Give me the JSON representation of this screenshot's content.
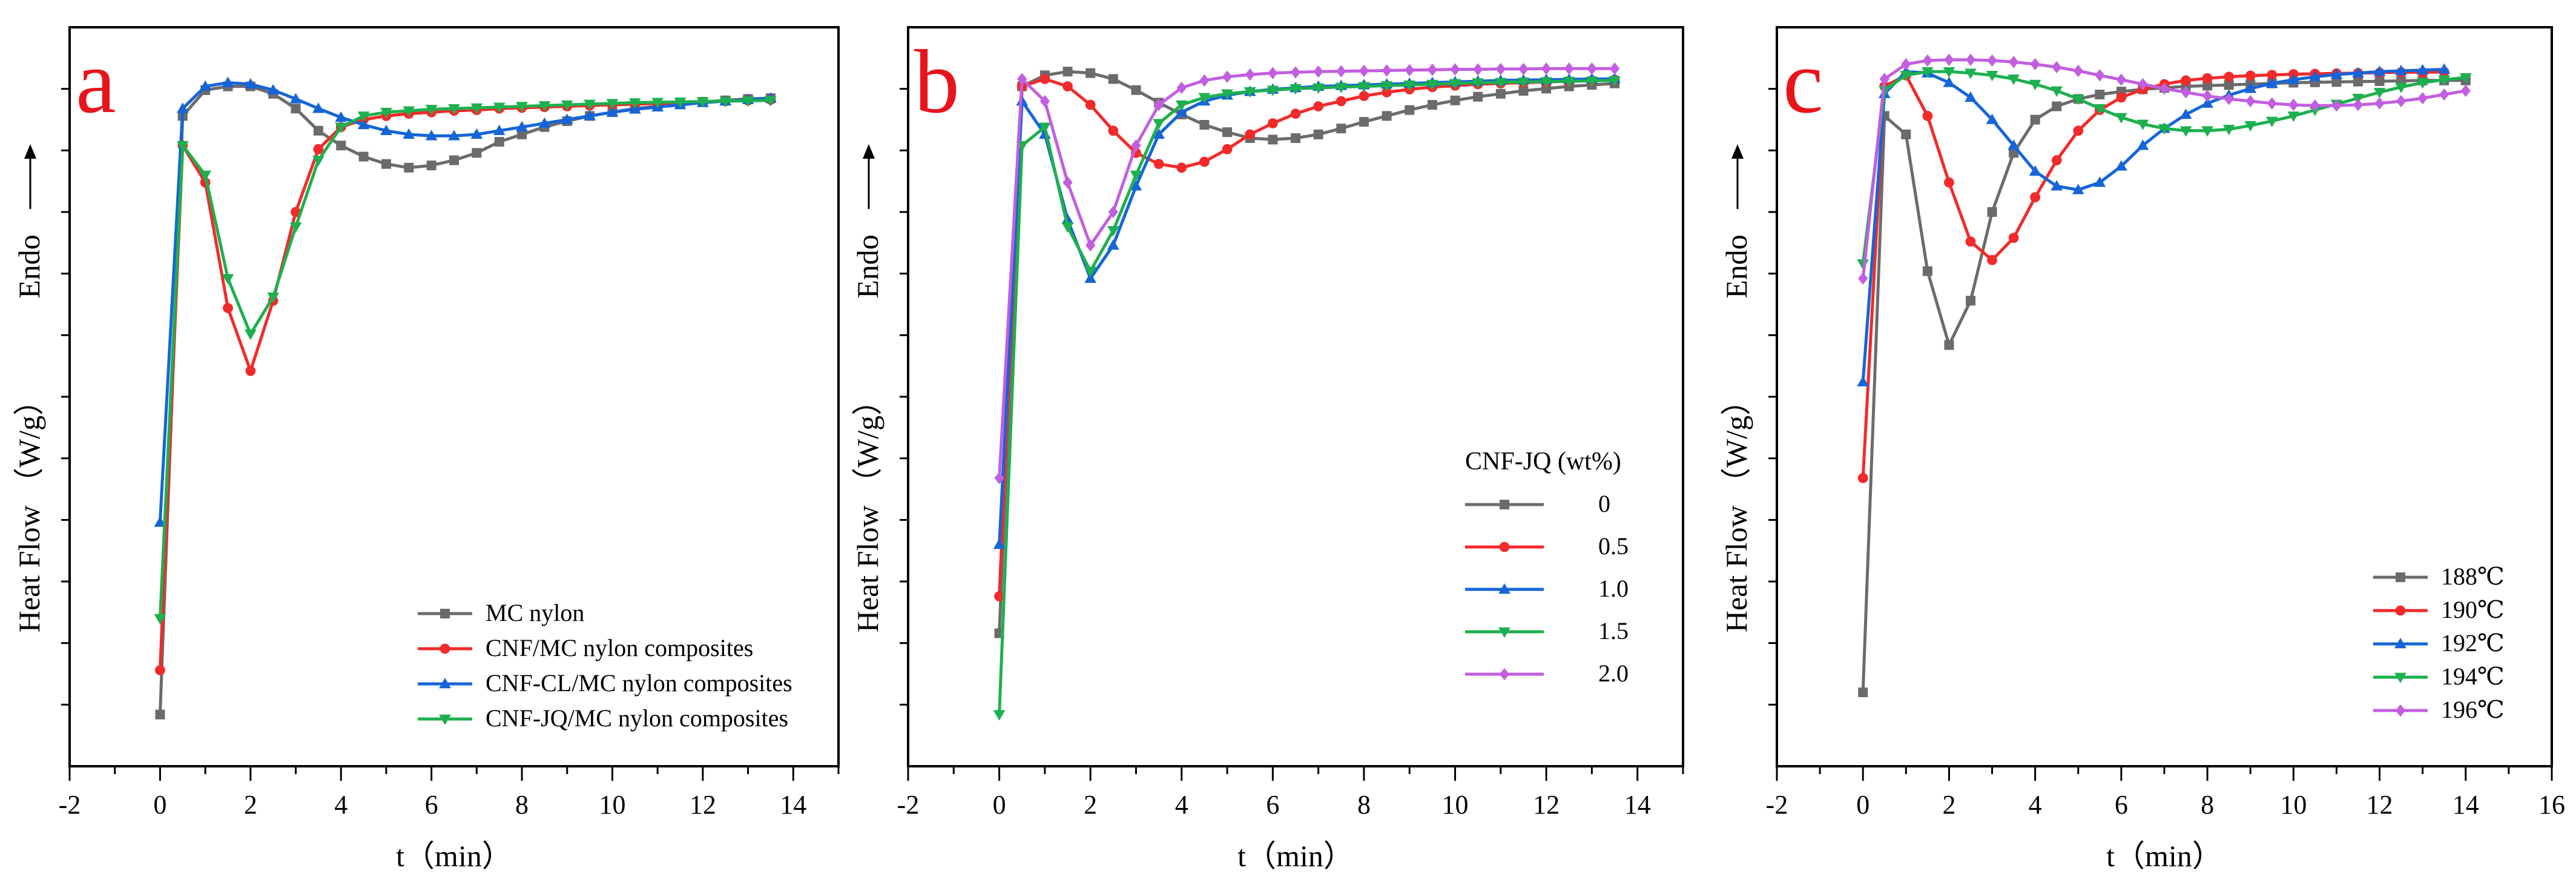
{
  "chart_data": [
    {
      "type": "line",
      "panel_label": "a",
      "xlabel": "t（min）",
      "ylabel": "Heat Flow （W/g）",
      "ylabel_annotation": "Endo",
      "xlim": [
        -2,
        15
      ],
      "ylim": [
        0,
        100
      ],
      "xticks": [
        -2,
        0,
        2,
        4,
        6,
        8,
        10,
        12,
        14
      ],
      "y_tick_labels": false,
      "legend_title": "",
      "legend_position": "bottom-right",
      "series": [
        {
          "name": "MC nylon",
          "color": "#6b6b6b",
          "marker": "square",
          "x": [
            0,
            0.5,
            1,
            1.5,
            2,
            2.5,
            3,
            3.5,
            4,
            4.5,
            5,
            5.5,
            6,
            6.5,
            7,
            7.5,
            8,
            8.5,
            9,
            9.5,
            10,
            10.5,
            11,
            11.5,
            12,
            12.5,
            13,
            13.5
          ],
          "y": [
            7,
            88,
            91.5,
            92,
            92,
            91,
            89,
            86,
            84,
            82.5,
            81.5,
            81,
            81.3,
            82,
            83,
            84.5,
            85.5,
            86.5,
            87.3,
            88,
            88.5,
            89,
            89.3,
            89.6,
            89.9,
            90.1,
            90.3,
            90.4
          ]
        },
        {
          "name": "CNF/MC nylon composites",
          "color": "#f22a2a",
          "marker": "circle",
          "x": [
            0,
            0.5,
            1,
            1.5,
            2,
            2.5,
            3,
            3.5,
            4,
            4.5,
            5,
            5.5,
            6,
            6.5,
            7,
            7.5,
            8,
            8.5,
            9,
            9.5,
            10,
            10.5,
            11,
            11.5,
            12,
            12.5,
            13,
            13.5
          ],
          "y": [
            13,
            84,
            79,
            62,
            53.5,
            63,
            75,
            83.5,
            86.5,
            87.5,
            88,
            88.3,
            88.5,
            88.7,
            88.8,
            89,
            89.1,
            89.2,
            89.3,
            89.4,
            89.5,
            89.6,
            89.7,
            89.8,
            89.9,
            90,
            90.1,
            90.2
          ]
        },
        {
          "name": "CNF-CL/MC nylon composites",
          "color": "#1565d8",
          "marker": "triangle-up",
          "x": [
            0,
            0.5,
            1,
            1.5,
            2,
            2.5,
            3,
            3.5,
            4,
            4.5,
            5,
            5.5,
            6,
            6.5,
            7,
            7.5,
            8,
            8.5,
            9,
            9.5,
            10,
            10.5,
            11,
            11.5,
            12,
            12.5,
            13,
            13.5
          ],
          "y": [
            33,
            89,
            92,
            92.5,
            92.3,
            91.5,
            90.3,
            89,
            87.8,
            86.8,
            86,
            85.5,
            85.3,
            85.3,
            85.5,
            86,
            86.5,
            87,
            87.5,
            88,
            88.5,
            88.9,
            89.2,
            89.5,
            89.8,
            90,
            90.2,
            90.4
          ]
        },
        {
          "name": "CNF-JQ/MC nylon composites",
          "color": "#1db04e",
          "marker": "triangle-down",
          "x": [
            0,
            0.5,
            1,
            1.5,
            2,
            2.5,
            3,
            3.5,
            4,
            4.5,
            5,
            5.5,
            6,
            6.5,
            7,
            7.5,
            8,
            8.5,
            9,
            9.5,
            10,
            10.5,
            11,
            11.5,
            12,
            12.5,
            13,
            13.5
          ],
          "y": [
            20,
            84,
            80,
            66,
            58.5,
            63.5,
            73,
            82,
            86.5,
            88,
            88.5,
            88.7,
            88.9,
            89,
            89.1,
            89.2,
            89.3,
            89.4,
            89.5,
            89.6,
            89.7,
            89.8,
            89.85,
            89.9,
            89.95,
            90,
            90.05,
            90.1
          ]
        }
      ]
    },
    {
      "type": "line",
      "panel_label": "b",
      "xlabel": "t（min）",
      "ylabel": "Heat Flow （W/g）",
      "ylabel_annotation": "Endo",
      "xlim": [
        -2,
        15
      ],
      "ylim": [
        0,
        100
      ],
      "xticks": [
        -2,
        0,
        2,
        4,
        6,
        8,
        10,
        12,
        14
      ],
      "y_tick_labels": false,
      "legend_title": "CNF-JQ (wt%)",
      "legend_position": "center-right",
      "series": [
        {
          "name": "0",
          "color": "#6b6b6b",
          "marker": "square",
          "x": [
            0,
            0.5,
            1,
            1.5,
            2,
            2.5,
            3,
            3.5,
            4,
            4.5,
            5,
            5.5,
            6,
            6.5,
            7,
            7.5,
            8,
            8.5,
            9,
            9.5,
            10,
            10.5,
            11,
            11.5,
            12,
            12.5,
            13,
            13.5
          ],
          "y": [
            18,
            92,
            93.5,
            94,
            93.8,
            93,
            91.5,
            89.8,
            88.2,
            86.8,
            85.8,
            85,
            84.8,
            85,
            85.5,
            86.3,
            87.2,
            88,
            88.8,
            89.5,
            90.1,
            90.6,
            91,
            91.4,
            91.7,
            92,
            92.2,
            92.4
          ]
        },
        {
          "name": "0.5",
          "color": "#f22a2a",
          "marker": "circle",
          "x": [
            0,
            0.5,
            1,
            1.5,
            2,
            2.5,
            3,
            3.5,
            4,
            4.5,
            5,
            5.5,
            6,
            6.5,
            7,
            7.5,
            8,
            8.5,
            9,
            9.5,
            10,
            10.5,
            11,
            11.5,
            12,
            12.5,
            13,
            13.5
          ],
          "y": [
            23,
            92,
            93,
            92,
            89.5,
            86,
            83,
            81.5,
            81,
            81.8,
            83.5,
            85.5,
            87,
            88.3,
            89.3,
            90,
            90.7,
            91.2,
            91.6,
            91.9,
            92.1,
            92.3,
            92.4,
            92.5,
            92.6,
            92.7,
            92.8,
            92.9
          ]
        },
        {
          "name": "1.0",
          "color": "#1565d8",
          "marker": "triangle-up",
          "x": [
            0,
            0.5,
            1,
            1.5,
            2,
            2.5,
            3,
            3.5,
            4,
            4.5,
            5,
            5.5,
            6,
            6.5,
            7,
            7.5,
            8,
            8.5,
            9,
            9.5,
            10,
            10.5,
            11,
            11.5,
            12,
            12.5,
            13,
            13.5
          ],
          "y": [
            30,
            90,
            85.5,
            74,
            66,
            70.5,
            78.5,
            85.5,
            88.5,
            90,
            90.8,
            91.3,
            91.6,
            91.8,
            92,
            92.1,
            92.2,
            92.3,
            92.4,
            92.5,
            92.6,
            92.7,
            92.8,
            92.85,
            92.9,
            92.95,
            93,
            93
          ]
        },
        {
          "name": "1.5",
          "color": "#1db04e",
          "marker": "triangle-down",
          "x": [
            0,
            0.5,
            1,
            1.5,
            2,
            2.5,
            3,
            3.5,
            4,
            4.5,
            5,
            5.5,
            6,
            6.5,
            7,
            7.5,
            8,
            8.5,
            9,
            9.5,
            10,
            10.5,
            11,
            11.5,
            12,
            12.5,
            13,
            13.5
          ],
          "y": [
            7,
            84,
            86.5,
            73,
            67,
            72.5,
            80,
            87,
            89.5,
            90.5,
            91,
            91.3,
            91.5,
            91.7,
            91.8,
            91.9,
            92,
            92.1,
            92.2,
            92.3,
            92.4,
            92.5,
            92.55,
            92.6,
            92.65,
            92.7,
            92.75,
            92.8
          ]
        },
        {
          "name": "2.0",
          "color": "#c25ee0",
          "marker": "diamond",
          "x": [
            0,
            0.5,
            1,
            1.5,
            2,
            2.5,
            3,
            3.5,
            4,
            4.5,
            5,
            5.5,
            6,
            6.5,
            7,
            7.5,
            8,
            8.5,
            9,
            9.5,
            10,
            10.5,
            11,
            11.5,
            12,
            12.5,
            13,
            13.5
          ],
          "y": [
            39,
            93,
            90,
            79,
            70.5,
            75,
            84,
            89.5,
            91.8,
            92.8,
            93.3,
            93.6,
            93.8,
            93.9,
            94,
            94.05,
            94.1,
            94.15,
            94.2,
            94.25,
            94.3,
            94.3,
            94.35,
            94.35,
            94.4,
            94.4,
            94.4,
            94.4
          ]
        }
      ]
    },
    {
      "type": "line",
      "panel_label": "c",
      "xlabel": "t（min）",
      "ylabel": "Heat Flow （W/g）",
      "ylabel_annotation": "Endo",
      "xlim": [
        -2,
        16
      ],
      "ylim": [
        0,
        100
      ],
      "xticks": [
        -2,
        0,
        2,
        4,
        6,
        8,
        10,
        12,
        14,
        16
      ],
      "y_tick_labels": false,
      "legend_title": "",
      "legend_position": "bottom-right",
      "series": [
        {
          "name": "188℃",
          "color": "#6b6b6b",
          "marker": "square",
          "x": [
            0,
            0.5,
            1,
            1.5,
            2,
            2.5,
            3,
            3.5,
            4,
            4.5,
            5,
            5.5,
            6,
            6.5,
            7,
            7.5,
            8,
            8.5,
            9,
            9.5,
            10,
            10.5,
            11,
            11.5,
            12,
            12.5,
            13,
            13.5,
            14
          ],
          "y": [
            10,
            88,
            85.5,
            67,
            57,
            63,
            75,
            83,
            87.5,
            89.3,
            90.3,
            90.9,
            91.3,
            91.6,
            91.8,
            92,
            92.1,
            92.2,
            92.3,
            92.4,
            92.5,
            92.55,
            92.6,
            92.65,
            92.7,
            92.75,
            92.8,
            92.8,
            92.8
          ]
        },
        {
          "name": "190℃",
          "color": "#f22a2a",
          "marker": "circle",
          "x": [
            0,
            0.5,
            1,
            1.5,
            2,
            2.5,
            3,
            3.5,
            4,
            4.5,
            5,
            5.5,
            6,
            6.5,
            7,
            7.5,
            8,
            8.5,
            9,
            9.5,
            10,
            10.5,
            11,
            11.5,
            12,
            12.5,
            13,
            13.5
          ],
          "y": [
            39,
            92,
            93.5,
            88,
            79,
            71,
            68.5,
            71.5,
            77,
            82,
            86,
            88.8,
            90.5,
            91.6,
            92.3,
            92.8,
            93.1,
            93.3,
            93.45,
            93.55,
            93.65,
            93.7,
            93.75,
            93.8,
            93.85,
            93.9,
            93.9,
            93.95
          ]
        },
        {
          "name": "192℃",
          "color": "#1565d8",
          "marker": "triangle-up",
          "x": [
            0,
            0.5,
            1,
            1.5,
            2,
            2.5,
            3,
            3.5,
            4,
            4.5,
            5,
            5.5,
            6,
            6.5,
            7,
            7.5,
            8,
            8.5,
            9,
            9.5,
            10,
            10.5,
            11,
            11.5,
            12,
            12.5,
            13,
            13.5
          ],
          "y": [
            52,
            91,
            94,
            93.8,
            92.5,
            90.5,
            87.5,
            84,
            80.5,
            78.5,
            78,
            79,
            81.2,
            84,
            86.3,
            88.2,
            89.7,
            90.8,
            91.7,
            92.4,
            92.9,
            93.3,
            93.6,
            93.8,
            94,
            94.1,
            94.2,
            94.3
          ]
        },
        {
          "name": "194℃",
          "color": "#1db04e",
          "marker": "triangle-down",
          "x": [
            0,
            0.5,
            1,
            1.5,
            2,
            2.5,
            3,
            3.5,
            4,
            4.5,
            5,
            5.5,
            6,
            6.5,
            7,
            7.5,
            8,
            8.5,
            9,
            9.5,
            10,
            10.5,
            11,
            11.5,
            12,
            12.5,
            13,
            13.5,
            14
          ],
          "y": [
            68,
            91.5,
            93.5,
            94,
            94,
            93.8,
            93.5,
            93,
            92.3,
            91.4,
            90.3,
            89,
            87.8,
            86.9,
            86.3,
            86,
            86,
            86.2,
            86.7,
            87.3,
            88,
            88.8,
            89.6,
            90.4,
            91.2,
            91.9,
            92.5,
            92.9,
            93.2
          ]
        },
        {
          "name": "196℃",
          "color": "#c25ee0",
          "marker": "diamond",
          "x": [
            0,
            0.5,
            1,
            1.5,
            2,
            2.5,
            3,
            3.5,
            4,
            4.5,
            5,
            5.5,
            6,
            6.5,
            7,
            7.5,
            8,
            8.5,
            9,
            9.5,
            10,
            10.5,
            11,
            11.5,
            12,
            12.5,
            13,
            13.5,
            14
          ],
          "y": [
            66,
            93,
            95,
            95.5,
            95.6,
            95.6,
            95.5,
            95.3,
            95,
            94.6,
            94.1,
            93.5,
            92.9,
            92.3,
            91.7,
            91.2,
            90.7,
            90.3,
            90,
            89.7,
            89.5,
            89.4,
            89.4,
            89.5,
            89.7,
            90,
            90.4,
            90.9,
            91.4
          ]
        }
      ]
    }
  ]
}
